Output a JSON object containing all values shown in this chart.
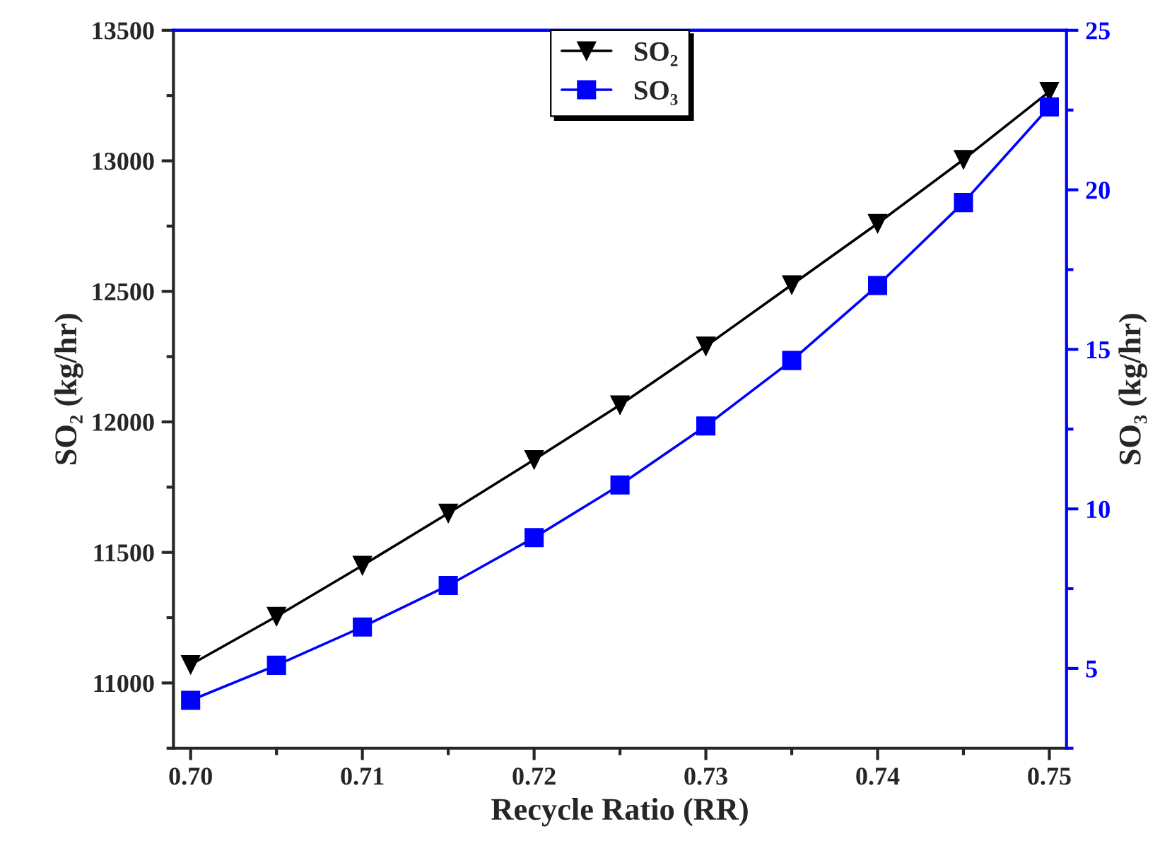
{
  "chart_data": {
    "type": "line",
    "xlabel": "Recycle Ratio (RR)",
    "ylabel": "SO₂ (kg/hr)",
    "y2label": "SO₃ (kg/hr)",
    "x": [
      0.7,
      0.705,
      0.71,
      0.715,
      0.72,
      0.725,
      0.73,
      0.735,
      0.74,
      0.745,
      0.75
    ],
    "series": [
      {
        "name": "SO₂",
        "color": "#000000",
        "marker": "triangle",
        "values": [
          11070,
          11255,
          11450,
          11650,
          11855,
          12065,
          12290,
          12525,
          12760,
          13005,
          13265
        ]
      },
      {
        "name": "SO₃",
        "color": "#0000ff",
        "marker": "square",
        "axis": "y2",
        "values": [
          4.0,
          5.1,
          6.3,
          7.6,
          9.1,
          10.75,
          12.6,
          14.65,
          17.0,
          19.6,
          22.6
        ]
      }
    ],
    "xlim": [
      0.699,
      0.751
    ],
    "xticks": [
      {
        "value": 0.7,
        "label": "0.70"
      },
      0.71,
      0.72,
      0.73,
      0.74,
      0.75
    ],
    "ylim": [
      10750,
      13500
    ],
    "yticks": [
      11000,
      11500,
      12000,
      12500,
      13000,
      13500
    ],
    "y2lim": [
      2.5,
      25
    ],
    "y2ticks": [
      5,
      10,
      15,
      20,
      25
    ],
    "line_style": "solid",
    "grid": false,
    "legend": "top"
  }
}
